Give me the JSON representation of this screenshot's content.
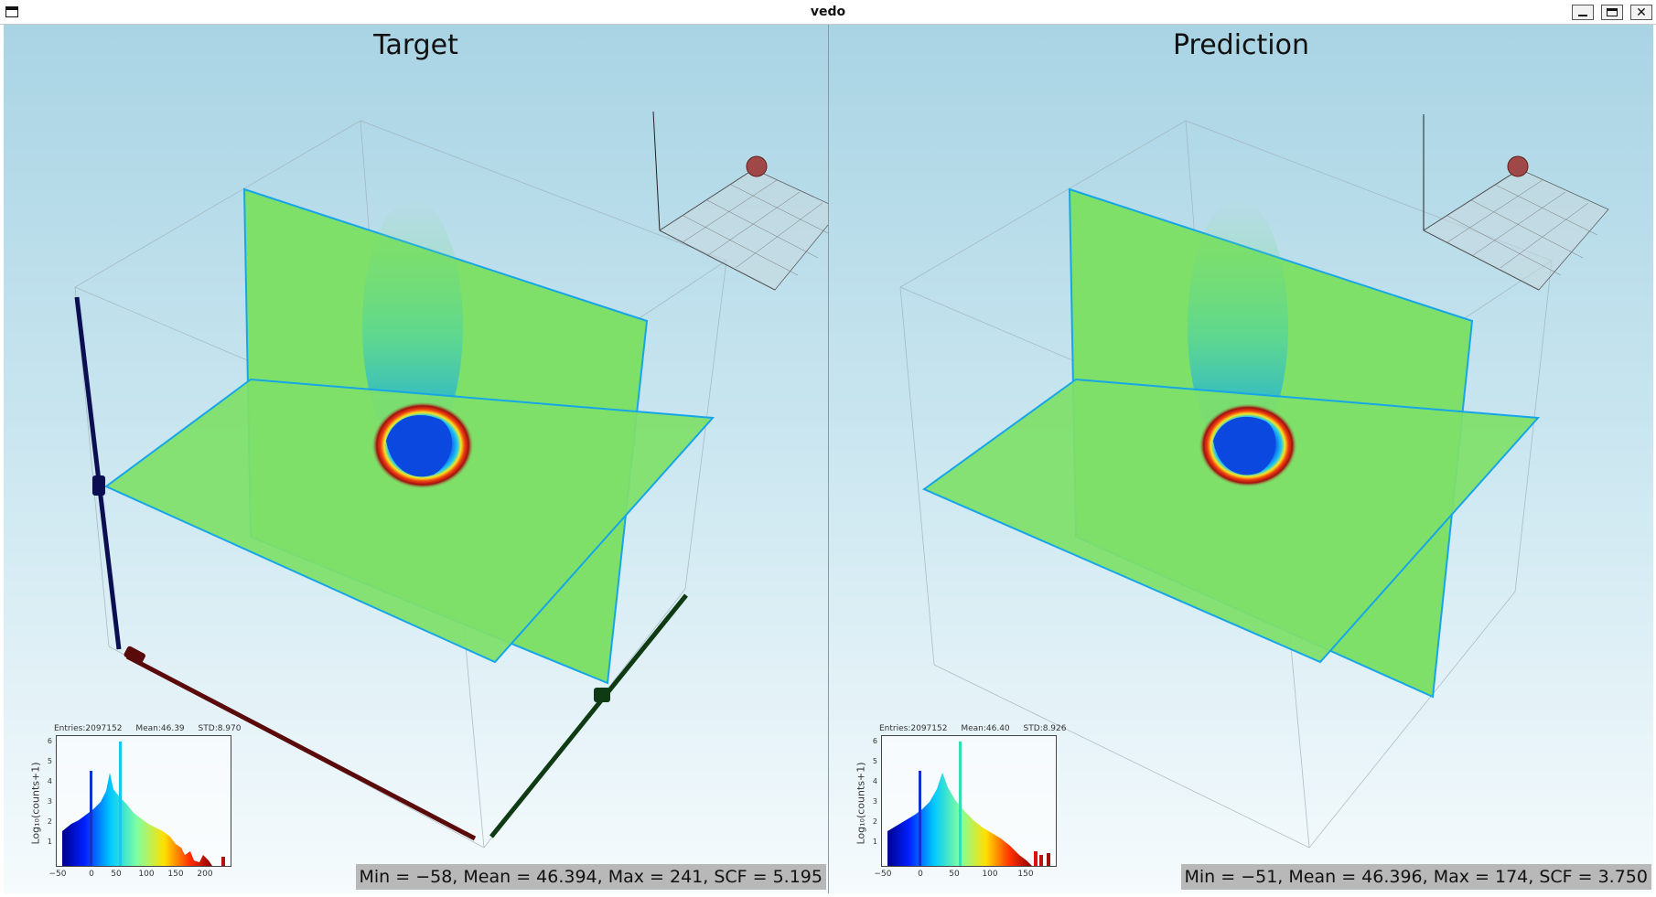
{
  "window": {
    "title": "vedo",
    "controls": {
      "minimize": "minimize",
      "maximize": "maximize",
      "close": "✕"
    }
  },
  "panels": [
    {
      "title": "Target",
      "stats": "Min = −58, Mean = 46.394, Max = 241, SCF = 5.195",
      "histogram": {
        "entries": "Entries:2097152",
        "mean": "Mean:46.39",
        "std": "STD:8.970",
        "ylabel": "Log₁₀(counts+1)",
        "yticks": [
          "6",
          "5",
          "4",
          "3",
          "2",
          "1"
        ],
        "xticks": [
          "−50",
          "0",
          "50",
          "100",
          "150",
          "200"
        ]
      }
    },
    {
      "title": "Prediction",
      "stats": "Min = −51, Mean = 46.396, Max = 174, SCF = 3.750",
      "histogram": {
        "entries": "Entries:2097152",
        "mean": "Mean:46.40",
        "std": "STD:8.926",
        "ylabel": "Log₁₀(counts+1)",
        "yticks": [
          "6",
          "5",
          "4",
          "3",
          "2",
          "1"
        ],
        "xticks": [
          "−50",
          "0",
          "50",
          "100",
          "150"
        ]
      }
    }
  ],
  "colors": {
    "slice_green": "#7fe069",
    "slice_edge": "#16a6e8",
    "axis_blue": "#0b0f52",
    "axis_red": "#5a0a0a",
    "axis_green": "#0e3a14",
    "stats_bg": "#b8b8b8"
  },
  "icons": {
    "window_icon": "window-icon"
  }
}
